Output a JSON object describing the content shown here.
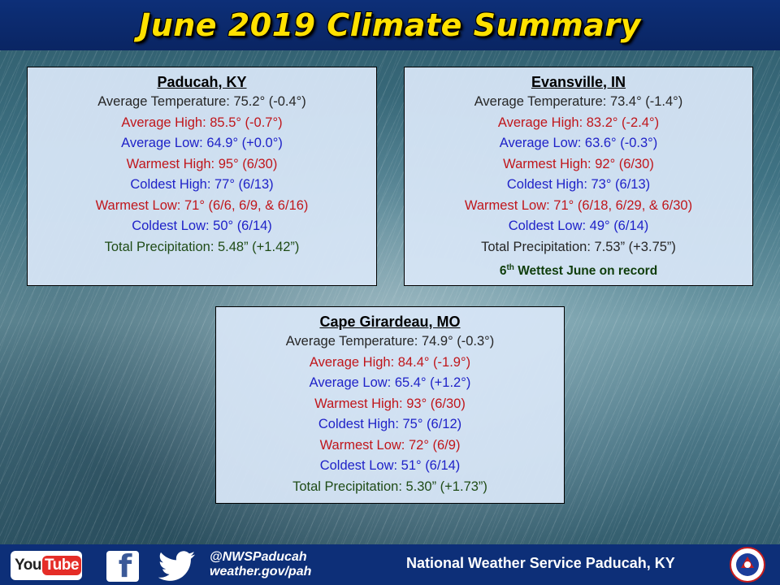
{
  "title": "June 2019 Climate Summary",
  "stations": [
    {
      "name": "Paducah, KY",
      "avg_temp": "Average Temperature: 75.2° (-0.4°)",
      "avg_high": "Average High: 85.5° (-0.7°)",
      "avg_low": "Average Low: 64.9° (+0.0°)",
      "warmest_high": "Warmest High: 95° (6/30)",
      "coldest_high": "Coldest High: 77° (6/13)",
      "warmest_low": "Warmest Low: 71° (6/6, 6/9, & 6/16)",
      "coldest_low": "Coldest Low: 50° (6/14)",
      "precip": "Total Precipitation: 5.48” (+1.42”)"
    },
    {
      "name": "Evansville, IN",
      "avg_temp": "Average Temperature: 73.4° (-1.4°)",
      "avg_high": "Average High: 83.2° (-2.4°)",
      "avg_low": "Average Low: 63.6° (-0.3°)",
      "warmest_high": "Warmest High: 92° (6/30)",
      "coldest_high": "Coldest High: 73° (6/13)",
      "warmest_low": "Warmest Low: 71° (6/18, 6/29, & 6/30)",
      "coldest_low": "Coldest Low: 49° (6/14)",
      "precip": "Total Precipitation: 7.53” (+3.75”)",
      "record_num": "6",
      "record_sup": "th",
      "record_text": " Wettest June on record"
    },
    {
      "name": "Cape Girardeau, MO",
      "avg_temp": "Average Temperature: 74.9° (-0.3°)",
      "avg_high": "Average High: 84.4° (-1.9°)",
      "avg_low": "Average Low: 65.4° (+1.2°)",
      "warmest_high": "Warmest High: 93° (6/30)",
      "coldest_high": "Coldest High: 75° (6/12)",
      "warmest_low": "Warmest Low: 72° (6/9)",
      "coldest_low": "Coldest Low: 51° (6/14)",
      "precip": "Total Precipitation: 5.30” (+1.73”)"
    }
  ],
  "footer": {
    "youtube_you": "You",
    "youtube_tube": "Tube",
    "facebook_letter": "f",
    "twitter_handle": "@NWSPaducah",
    "website": "weather.gov/pah",
    "office": "National Weather Service Paducah, KY"
  },
  "colors": {
    "banner": "#0d2f78",
    "title": "#ffe100",
    "red": "#c0161b",
    "blue": "#1f22c8",
    "green": "#1f4b16"
  },
  "icons": [
    "youtube-icon",
    "facebook-icon",
    "twitter-icon",
    "nws-seal-icon"
  ]
}
